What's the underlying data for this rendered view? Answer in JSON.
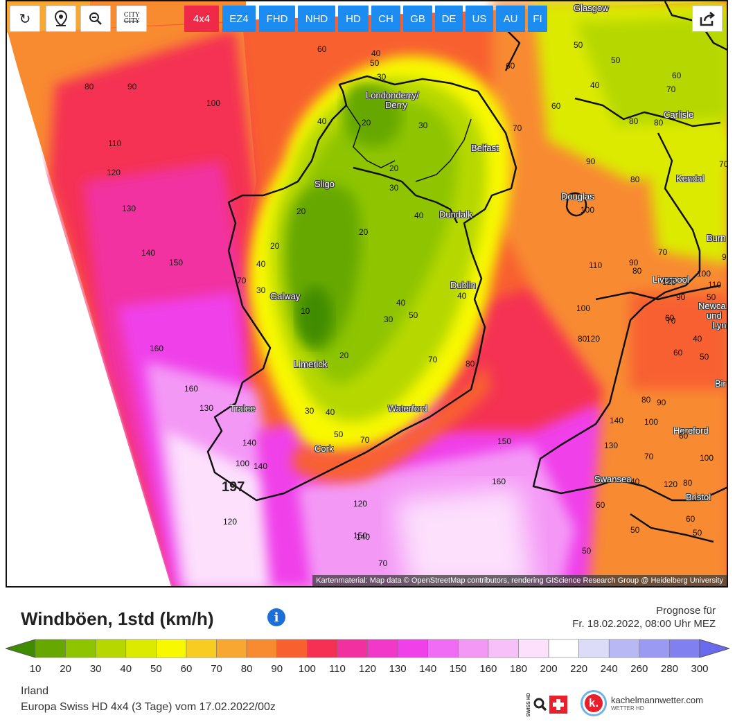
{
  "toolbar": {
    "tools": [
      {
        "name": "refresh-button",
        "icon": "refresh-icon",
        "glyph": "↻"
      },
      {
        "name": "location-button",
        "icon": "map-pin-icon",
        "glyph": ""
      },
      {
        "name": "zoom-out-button",
        "icon": "zoom-out-icon",
        "glyph": ""
      },
      {
        "name": "city-toggle-button",
        "icon": "city-icon",
        "label": "CITY"
      }
    ],
    "models": [
      {
        "label": "4x4",
        "active": true
      },
      {
        "label": "EZ4",
        "active": false
      },
      {
        "label": "FHD",
        "active": false
      },
      {
        "label": "NHD",
        "active": false
      },
      {
        "label": "HD",
        "active": false
      },
      {
        "label": "CH",
        "active": false
      },
      {
        "label": "GB",
        "active": false
      },
      {
        "label": "DE",
        "active": false
      },
      {
        "label": "US",
        "active": false
      },
      {
        "label": "AU",
        "active": false
      },
      {
        "label": "FI",
        "active": false
      }
    ],
    "share_icon": "share-icon"
  },
  "cities": [
    {
      "name": "Glasgow"
    },
    {
      "name": "Londonderry/"
    },
    {
      "name": "Derry"
    },
    {
      "name": "Carlisle"
    },
    {
      "name": "Belfast"
    },
    {
      "name": "Sligo"
    },
    {
      "name": "Kendal"
    },
    {
      "name": "Douglas"
    },
    {
      "name": "Dundalk"
    },
    {
      "name": "Burn"
    },
    {
      "name": "Galway"
    },
    {
      "name": "Dublin"
    },
    {
      "name": "Liverpool"
    },
    {
      "name": "Newca"
    },
    {
      "name": "und"
    },
    {
      "name": "Lyn"
    },
    {
      "name": "Limerick"
    },
    {
      "name": "Bir"
    },
    {
      "name": "Tralee"
    },
    {
      "name": "Waterford"
    },
    {
      "name": "Hereford"
    },
    {
      "name": "Cork"
    },
    {
      "name": "Swansea"
    },
    {
      "name": "Bristol"
    }
  ],
  "isolines": [
    "80",
    "90",
    "100",
    "110",
    "120",
    "130",
    "140",
    "150",
    "160",
    "160",
    "130",
    "140",
    "100",
    "197",
    "120",
    "140",
    "150",
    "70",
    "60",
    "40",
    "50",
    "30",
    "20",
    "40",
    "30",
    "20",
    "30",
    "40",
    "20",
    "20",
    "20",
    "40",
    "30",
    "70",
    "10",
    "40",
    "30",
    "50",
    "20",
    "70",
    "30",
    "40",
    "50",
    "40",
    "70",
    "80",
    "60",
    "70",
    "90",
    "100",
    "110",
    "120",
    "130",
    "140",
    "150",
    "160",
    "120",
    "140",
    "80",
    "90",
    "100",
    "70",
    "80",
    "60",
    "50",
    "40",
    "50",
    "60",
    "70",
    "80",
    "60",
    "70",
    "80",
    "80",
    "90",
    "100",
    "110",
    "120",
    "90",
    "100",
    "80",
    "70",
    "60",
    "50",
    "40",
    "60",
    "50",
    "50",
    "50",
    "50",
    "90",
    "80",
    "100",
    "120",
    "60",
    "70",
    "40",
    "60"
  ],
  "attribution": "Kartenmaterial: Map data © OpenStreetMap contributors, rendering GIScience Research Group @ Heidelberg University",
  "legend": {
    "title": "Windböen, 1std (km/h)",
    "info_icon": "i",
    "forecast_label": "Prognose für",
    "forecast_date": "Fr. 18.02.2022, 08:00 Uhr MEZ",
    "ticks": [
      "10",
      "20",
      "30",
      "40",
      "50",
      "60",
      "70",
      "80",
      "90",
      "100",
      "110",
      "120",
      "130",
      "140",
      "150",
      "160",
      "180",
      "200",
      "220",
      "240",
      "260",
      "280",
      "300"
    ],
    "colors": [
      "#3f8c00",
      "#66a800",
      "#8ec400",
      "#b6d800",
      "#dcea00",
      "#f8f800",
      "#f8cc20",
      "#f8a830",
      "#f88a30",
      "#f86030",
      "#f53052",
      "#f230a0",
      "#f238c8",
      "#f040ea",
      "#f06cf4",
      "#f498f6",
      "#f8c0f8",
      "#fce0fc",
      "#ffffff",
      "#dcdcf8",
      "#b8b8f4",
      "#9a9af2",
      "#8080f0",
      "#6a6aee"
    ],
    "region": "Irland",
    "model_run": "Europa Swiss HD 4x4 (3 Tage) vom 17.02.2022/00z",
    "swiss_logo_text": "SWISS HD",
    "km_logo_letter": "k.",
    "km_logo_name": "kachelmannwetter.com",
    "km_logo_sub": "WETTER HD"
  }
}
